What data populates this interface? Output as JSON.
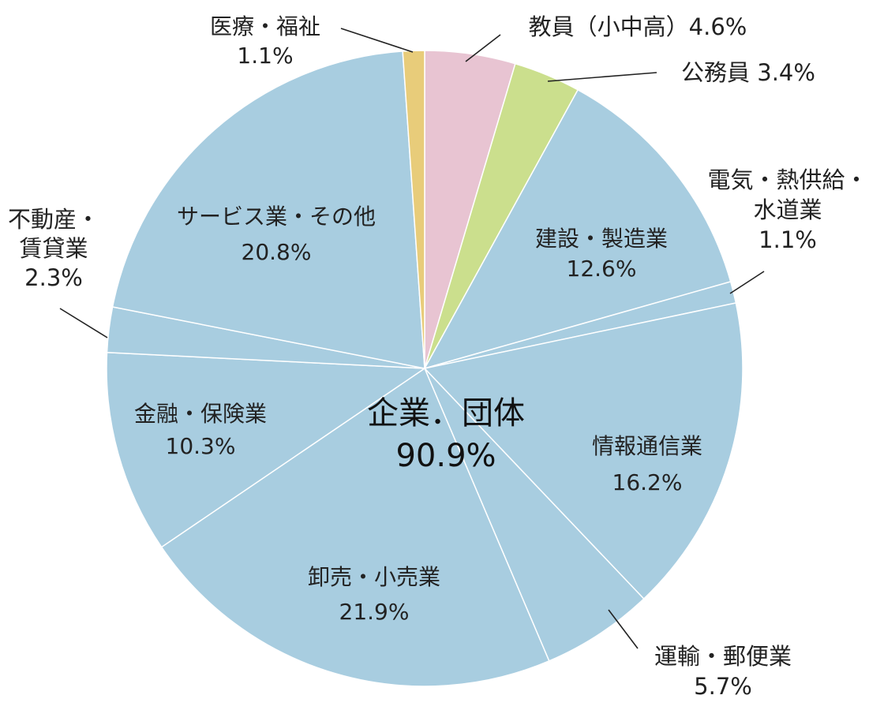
{
  "chart_data": {
    "type": "pie",
    "start_direction": "top, clockwise",
    "slices": [
      {
        "name": "教員（小中高）",
        "value": 4.6,
        "color": "#e8c4d2",
        "label_lines": [
          "教員（小中高）4.6%"
        ]
      },
      {
        "name": "公務員",
        "value": 3.4,
        "color": "#cbdf8d",
        "label_lines": [
          "公務員 3.4%"
        ]
      },
      {
        "name": "建設・製造業",
        "value": 12.6,
        "color": "#a8cde0",
        "label_lines": [
          "建設・製造業",
          "12.6%"
        ]
      },
      {
        "name": "電気・熱供給・水道業",
        "value": 1.1,
        "color": "#a8cde0",
        "label_lines": [
          "電気・熱供給・",
          "水道業",
          "1.1%"
        ]
      },
      {
        "name": "情報通信業",
        "value": 16.2,
        "color": "#a8cde0",
        "label_lines": [
          "情報通信業",
          "16.2%"
        ]
      },
      {
        "name": "運輸・郵便業",
        "value": 5.7,
        "color": "#a8cde0",
        "label_lines": [
          "運輸・郵便業",
          "5.7%"
        ]
      },
      {
        "name": "卸売・小売業",
        "value": 21.9,
        "color": "#a8cde0",
        "label_lines": [
          "卸売・小売業",
          "21.9%"
        ]
      },
      {
        "name": "金融・保険業",
        "value": 10.3,
        "color": "#a8cde0",
        "label_lines": [
          "金融・保険業",
          "10.3%"
        ]
      },
      {
        "name": "不動産・賃貸業",
        "value": 2.3,
        "color": "#a8cde0",
        "label_lines": [
          "不動産・",
          "賃貸業",
          "2.3%"
        ]
      },
      {
        "name": "サービス業・その他",
        "value": 20.8,
        "color": "#a8cde0",
        "label_lines": [
          "サービス業・その他",
          "20.8%"
        ]
      },
      {
        "name": "医療・福祉",
        "value": 1.1,
        "color": "#e8cc7a",
        "label_lines": [
          "医療・福祉",
          "1.1%"
        ]
      }
    ],
    "center_label": {
      "title": "企業．団体",
      "value": "90.9%"
    }
  }
}
